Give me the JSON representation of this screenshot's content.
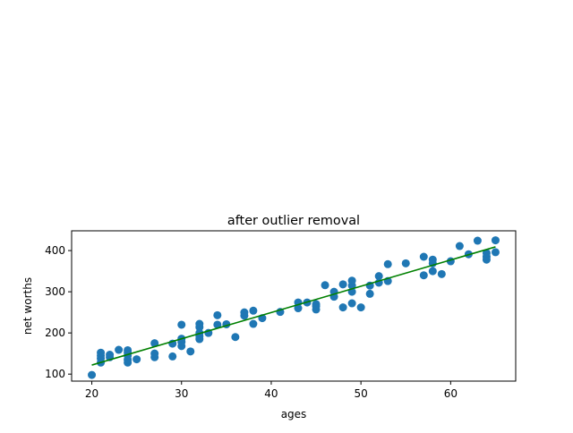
{
  "chart_data": {
    "type": "scatter",
    "title": "after outlier removal",
    "xlabel": "ages",
    "ylabel": "net worths",
    "xlim": [
      17.75,
      67.25
    ],
    "ylim": [
      83,
      448
    ],
    "xticks": [
      20,
      30,
      40,
      50,
      60
    ],
    "yticks": [
      100,
      200,
      300,
      400
    ],
    "grid": false,
    "colors": {
      "points": "#1f77b4",
      "fit_line": "#008000"
    },
    "series": [
      {
        "type": "scatter",
        "x": [
          20,
          21,
          21,
          21,
          21,
          22,
          22,
          23,
          24,
          24,
          24,
          24,
          24,
          25,
          27,
          27,
          27,
          29,
          29,
          30,
          30,
          30,
          30,
          31,
          32,
          32,
          32,
          32,
          32,
          33,
          34,
          34,
          35,
          36,
          37,
          37,
          38,
          38,
          39,
          41,
          43,
          43,
          44,
          45,
          45,
          45,
          46,
          47,
          47,
          48,
          48,
          49,
          49,
          49,
          49,
          50,
          51,
          51,
          52,
          52,
          53,
          53,
          55,
          57,
          57,
          58,
          58,
          58,
          59,
          60,
          61,
          62,
          63,
          64,
          64,
          64,
          65,
          65
        ],
        "y": [
          98,
          128,
          138,
          145,
          152,
          141,
          147,
          159,
          128,
          135,
          145,
          152,
          158,
          136,
          141,
          150,
          175,
          143,
          174,
          168,
          178,
          186,
          220,
          155,
          185,
          192,
          200,
          214,
          222,
          200,
          220,
          243,
          221,
          190,
          242,
          250,
          222,
          254,
          236,
          251,
          260,
          274,
          274,
          257,
          265,
          270,
          316,
          288,
          300,
          262,
          318,
          272,
          300,
          315,
          327,
          262,
          295,
          315,
          322,
          338,
          326,
          367,
          369,
          340,
          385,
          350,
          369,
          378,
          343,
          374,
          411,
          391,
          424,
          378,
          385,
          394,
          396,
          425
        ]
      },
      {
        "type": "line",
        "x": [
          20,
          65
        ],
        "y": [
          122,
          409
        ]
      }
    ]
  }
}
